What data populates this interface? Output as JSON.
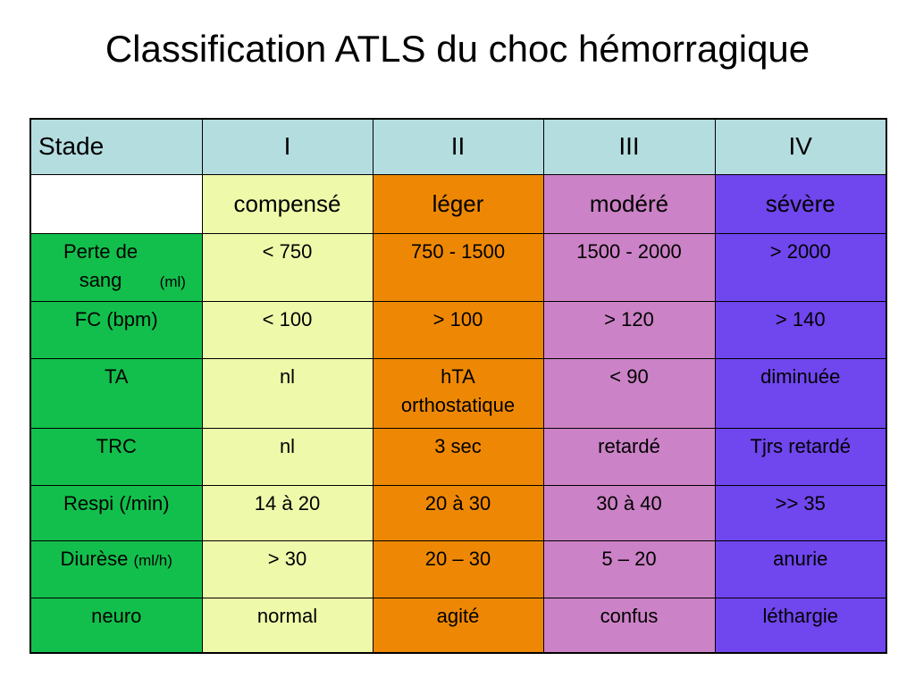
{
  "title": "Classification ATLS du choc hémorragique",
  "colors": {
    "header": "#b4dde0",
    "label_col": "#13bf4c",
    "col_I": "#eefaaa",
    "col_II": "#ee8804",
    "col_III": "#cc82c6",
    "col_IV": "#7046ee",
    "blank": "#ffffff"
  },
  "header": {
    "label": "Stade",
    "stages": [
      "I",
      "II",
      "III",
      "IV"
    ]
  },
  "severity": [
    "compensé",
    "léger",
    "modéré",
    "sévère"
  ],
  "rows": [
    {
      "label": "Perte de sang",
      "unit": "(ml)",
      "values": [
        "< 750",
        "750 - 1500",
        "1500 - 2000",
        "> 2000"
      ]
    },
    {
      "label": "FC (bpm)",
      "unit": "",
      "values": [
        "< 100",
        "> 100",
        "> 120",
        "> 140"
      ]
    },
    {
      "label": "TA",
      "unit": "",
      "values": [
        "nl",
        "hTA orthostatique",
        "< 90",
        "diminuée"
      ]
    },
    {
      "label": "TRC",
      "unit": "",
      "values": [
        "nl",
        "3 sec",
        "retardé",
        "Tjrs retardé"
      ]
    },
    {
      "label": "Respi (/min)",
      "unit": "",
      "values": [
        "14 à 20",
        "20 à 30",
        "30 à 40",
        ">> 35"
      ]
    },
    {
      "label": "Diurèse",
      "unit": "(ml/h)",
      "values": [
        "> 30",
        "20 – 30",
        "5 – 20",
        "anurie"
      ]
    },
    {
      "label": "neuro",
      "unit": "",
      "values": [
        "normal",
        "agité",
        "confus",
        "léthargie"
      ]
    }
  ]
}
